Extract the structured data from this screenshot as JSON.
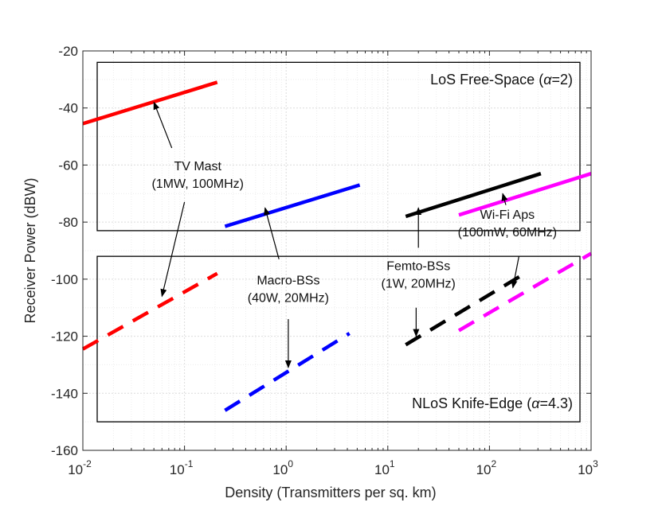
{
  "chart_data": {
    "type": "line",
    "xscale": "log",
    "xlim": [
      0.01,
      1000
    ],
    "ylim": [
      -160,
      -20
    ],
    "xlabel": "Density (Transmitters per sq. km)",
    "ylabel": "Receiver Power (dBW)",
    "x_ticks": [
      {
        "base": "10",
        "exp": "-2",
        "value": 0.01
      },
      {
        "base": "10",
        "exp": "-1",
        "value": 0.1
      },
      {
        "base": "10",
        "exp": "0",
        "value": 1
      },
      {
        "base": "10",
        "exp": "1",
        "value": 10
      },
      {
        "base": "10",
        "exp": "2",
        "value": 100
      },
      {
        "base": "10",
        "exp": "3",
        "value": 1000
      }
    ],
    "y_ticks": [
      "-20",
      "-40",
      "-60",
      "-80",
      "-100",
      "-120",
      "-140",
      "-160"
    ],
    "grid": true,
    "regions": [
      {
        "label": "LoS Free-Space (",
        "greek": "α",
        "suffix": "=2)",
        "ylim": [
          -83,
          -24
        ]
      },
      {
        "label": "NLoS Knife-Edge (",
        "greek": "α",
        "suffix": "=4.3)",
        "ylim": [
          -150,
          -92
        ]
      }
    ],
    "series": [
      {
        "name": "TV Mast LoS",
        "color": "#ff0000",
        "style": "solid",
        "x": [
          0.01,
          0.21
        ],
        "y": [
          -45.5,
          -31
        ]
      },
      {
        "name": "TV Mast NLoS",
        "color": "#ff0000",
        "style": "dashed",
        "x": [
          0.01,
          0.21
        ],
        "y": [
          -124.5,
          -98
        ]
      },
      {
        "name": "Macro-BSs LoS",
        "color": "#0000ff",
        "style": "solid",
        "x": [
          0.25,
          5.3
        ],
        "y": [
          -81.5,
          -67
        ]
      },
      {
        "name": "Macro-BSs NLoS",
        "color": "#0000ff",
        "style": "dashed",
        "x": [
          0.25,
          4.2
        ],
        "y": [
          -146,
          -119
        ]
      },
      {
        "name": "Femto-BSs LoS",
        "color": "#000000",
        "style": "solid",
        "x": [
          15,
          320
        ],
        "y": [
          -78,
          -63
        ]
      },
      {
        "name": "Femto-BSs NLoS",
        "color": "#000000",
        "style": "dashed",
        "x": [
          15,
          200
        ],
        "y": [
          -123,
          -99
        ]
      },
      {
        "name": "Wi-Fi APs LoS",
        "color": "#ff00ff",
        "style": "solid",
        "x": [
          50,
          1000
        ],
        "y": [
          -77.5,
          -63
        ]
      },
      {
        "name": "Wi-Fi APs NLoS",
        "color": "#ff00ff",
        "style": "dashed",
        "x": [
          50,
          1000
        ],
        "y": [
          -118,
          -91
        ]
      }
    ],
    "annotations": [
      {
        "name": "tv-mast",
        "lines": [
          "TV Mast",
          "(1MW, 100MHz)"
        ],
        "text_at": [
          0.135,
          -63
        ],
        "arrows": [
          {
            "from": [
              0.075,
              -54
            ],
            "to": [
              0.05,
              -38
            ]
          },
          {
            "from": [
              0.1,
              -73
            ],
            "to": [
              0.06,
              -106
            ]
          }
        ]
      },
      {
        "name": "macro-bss",
        "lines": [
          "Macro-BSs",
          "(40W, 20MHz)"
        ],
        "text_at": [
          1.05,
          -103
        ],
        "arrows": [
          {
            "from": [
              0.85,
              -93
            ],
            "to": [
              0.62,
              -75
            ]
          },
          {
            "from": [
              1.05,
              -114
            ],
            "to": [
              1.05,
              -131
            ]
          }
        ]
      },
      {
        "name": "femto-bss",
        "lines": [
          "Femto-BSs",
          "(1W, 20MHz)"
        ],
        "text_at": [
          20,
          -98
        ],
        "arrows": [
          {
            "from": [
              20,
              -89
            ],
            "to": [
              20,
              -75
            ]
          },
          {
            "from": [
              19,
              -110
            ],
            "to": [
              19,
              -120
            ]
          }
        ]
      },
      {
        "name": "wi-fi-aps",
        "lines": [
          "Wi-Fi Aps",
          "(100mW, 60MHz)"
        ],
        "text_at": [
          150,
          -80
        ],
        "arrows": [
          {
            "from": [
              145,
              -74
            ],
            "to": [
              135,
              -70
            ]
          },
          {
            "from": [
              195,
              -92
            ],
            "to": [
              170,
              -103
            ]
          }
        ]
      }
    ]
  }
}
